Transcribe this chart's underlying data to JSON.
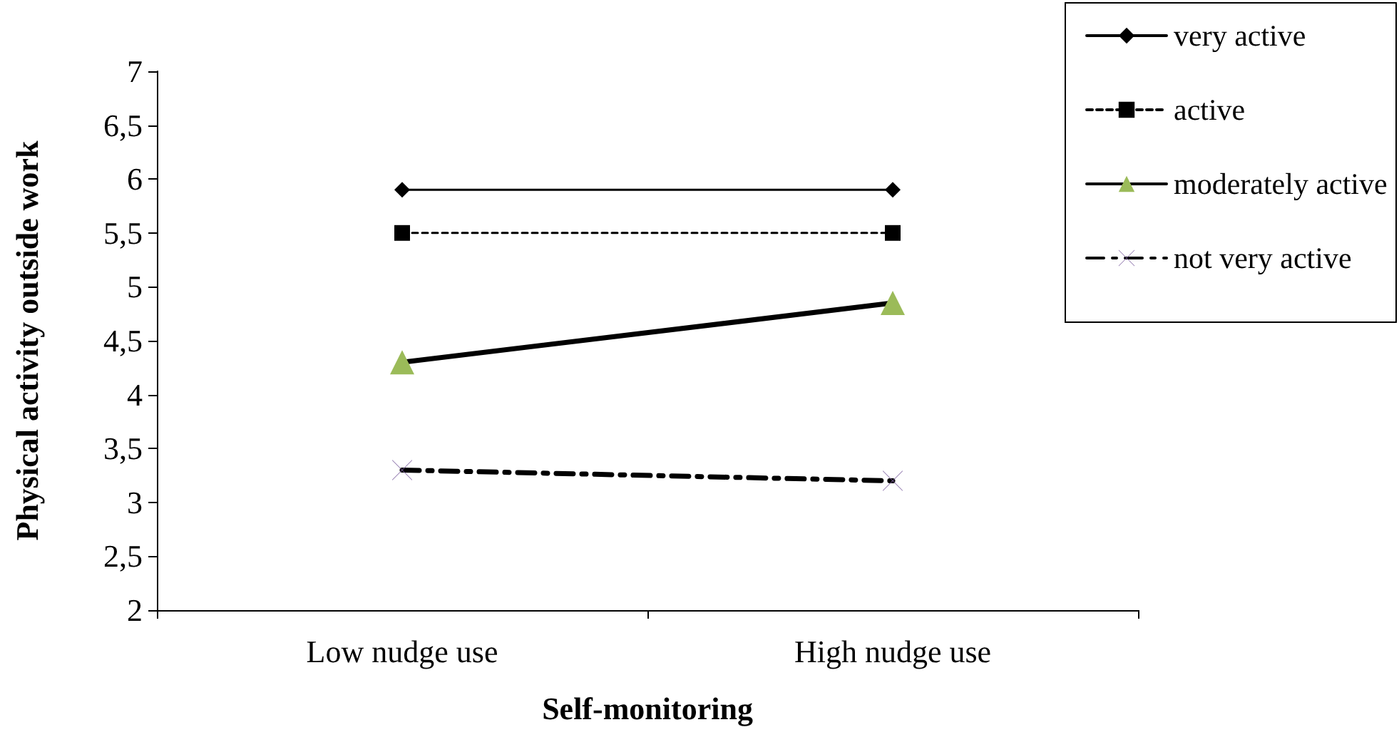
{
  "chart_data": {
    "type": "line",
    "xlabel": "Self-monitoring",
    "ylabel": "Physical activity outside work",
    "categories": [
      "Low nudge use",
      "High nudge use"
    ],
    "ylim": [
      2,
      7
    ],
    "yticks": [
      2,
      {
        "value": 2.5,
        "label": "2,5"
      },
      3,
      {
        "value": 3.5,
        "label": "3,5"
      },
      4,
      {
        "value": 4.5,
        "label": "4,5"
      },
      5,
      {
        "value": 5.5,
        "label": "5,5"
      },
      6,
      {
        "value": 6.5,
        "label": "6,5"
      },
      7
    ],
    "grid": false,
    "legend": "top right",
    "series": [
      {
        "name": "very active",
        "color": "#000000",
        "values": [
          5.9,
          5.9
        ],
        "marker": "diamond",
        "line_style": "solid"
      },
      {
        "name": "active",
        "color": "#000000",
        "values": [
          5.5,
          5.5
        ],
        "marker": "square",
        "line_style": "dashed"
      },
      {
        "name": "moderately active",
        "color": "#000000",
        "colors": [
          "#9bbb59",
          "#9bbb59"
        ],
        "values": [
          4.3,
          4.85
        ],
        "marker": "triangle",
        "line_style": "solid"
      },
      {
        "name": "not very active",
        "color": "#000000",
        "colors": [
          "#8064a2",
          "#8064a2"
        ],
        "values": [
          3.3,
          3.2
        ],
        "marker": "cross",
        "line_style": "dashdot"
      }
    ]
  }
}
